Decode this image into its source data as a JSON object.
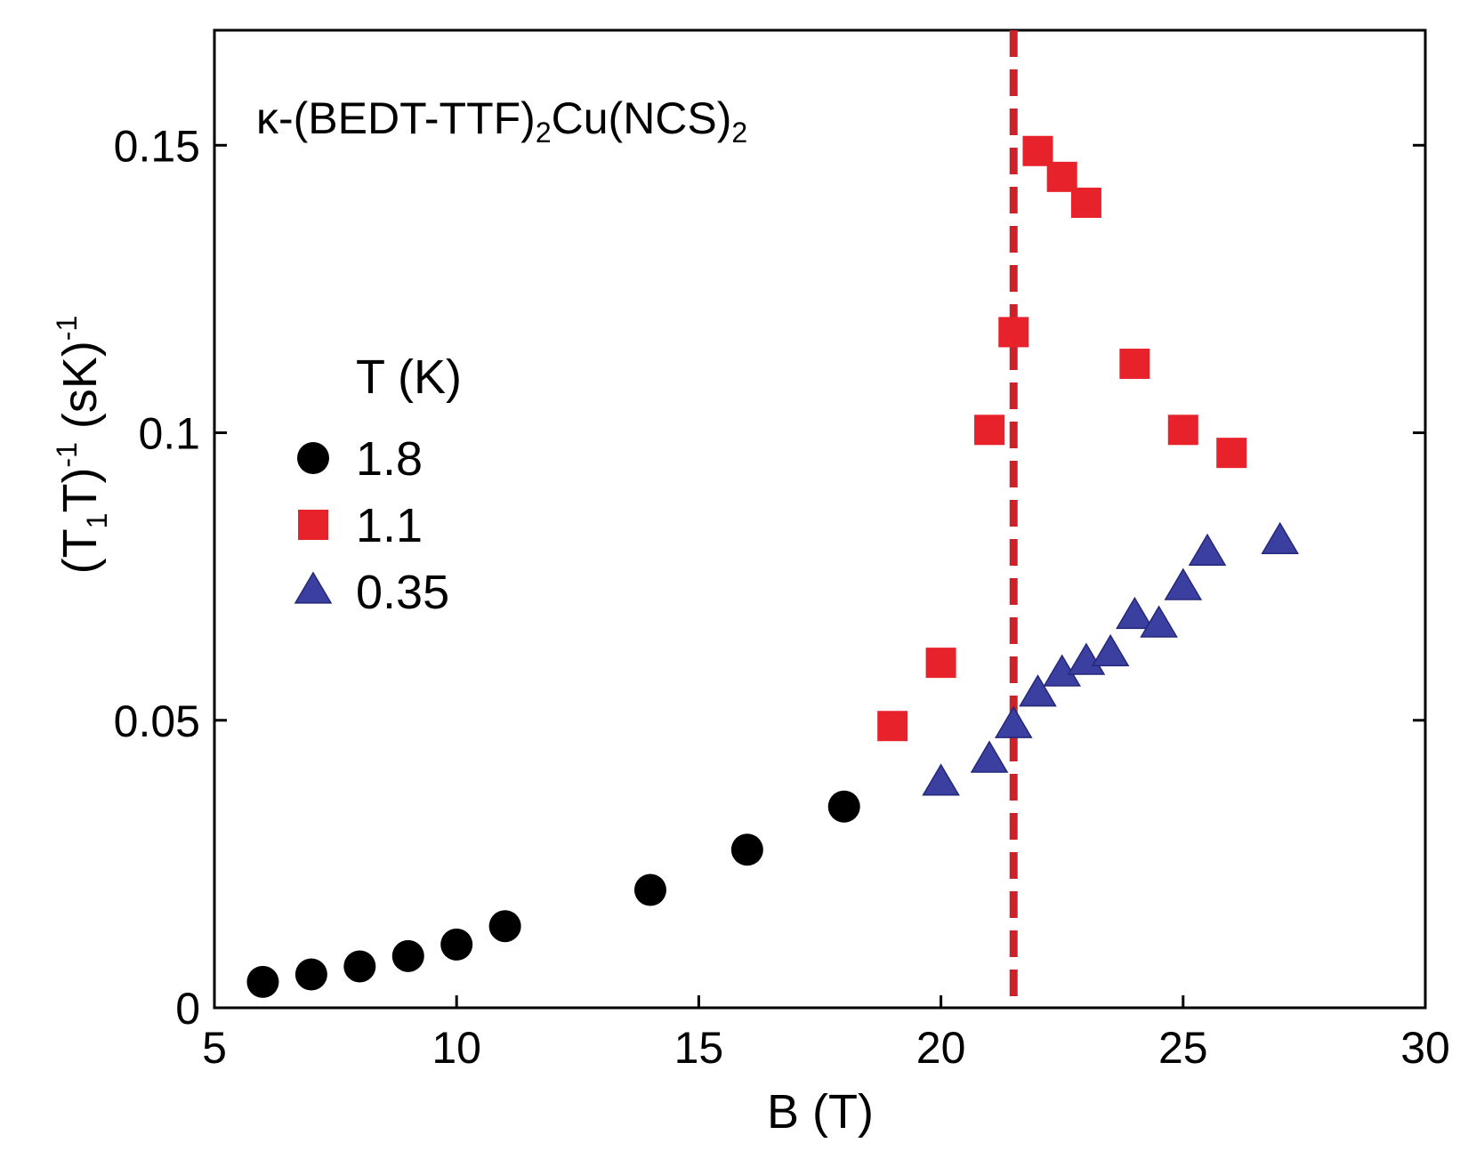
{
  "chart_data": {
    "type": "scatter",
    "annotation": {
      "parts": [
        {
          "text": "κ-(BEDT-TTF)",
          "sub": false
        },
        {
          "text": "2",
          "sub": true
        },
        {
          "text": "Cu(NCS)",
          "sub": false
        },
        {
          "text": "2",
          "sub": true
        }
      ]
    },
    "xlabel": "B (T)",
    "ylabel": {
      "parts": [
        {
          "text": "(T",
          "script": "none"
        },
        {
          "text": "1",
          "script": "sub"
        },
        {
          "text": "T)",
          "script": "none"
        },
        {
          "text": "-1",
          "script": "sup"
        },
        {
          "text": " (sK)",
          "script": "none"
        },
        {
          "text": "-1",
          "script": "sup"
        }
      ]
    },
    "xlim": [
      5,
      30
    ],
    "ylim": [
      0,
      0.17
    ],
    "xticks": [
      5,
      10,
      15,
      20,
      25,
      30
    ],
    "xtick_labels": [
      "5",
      "10",
      "15",
      "20",
      "25",
      "30"
    ],
    "yticks": [
      0,
      0.05,
      0.1,
      0.15
    ],
    "ytick_labels": [
      "0",
      "0.05",
      "0.1",
      "0.15"
    ],
    "grid": false,
    "legend": {
      "title": "T (K)",
      "placement": "left-middle"
    },
    "reference_line": {
      "orientation": "vertical",
      "x": 21.5,
      "style": "dashed",
      "color": "#cc2229"
    },
    "series": [
      {
        "name": "1.8",
        "marker": "circle",
        "color": "#000000",
        "points": [
          [
            6,
            0.0045
          ],
          [
            7,
            0.0058
          ],
          [
            8,
            0.0072
          ],
          [
            9,
            0.009
          ],
          [
            10,
            0.011
          ],
          [
            11,
            0.0142
          ],
          [
            14,
            0.0205
          ],
          [
            16,
            0.0275
          ],
          [
            18,
            0.035
          ]
        ]
      },
      {
        "name": "1.1",
        "marker": "square",
        "color": "#e8222b",
        "points": [
          [
            19,
            0.049
          ],
          [
            20,
            0.06
          ],
          [
            21,
            0.1005
          ],
          [
            21.5,
            0.1175
          ],
          [
            22,
            0.149
          ],
          [
            22.5,
            0.1445
          ],
          [
            23,
            0.14
          ],
          [
            24,
            0.112
          ],
          [
            25,
            0.1005
          ],
          [
            26,
            0.0965
          ]
        ]
      },
      {
        "name": "0.35",
        "marker": "triangle",
        "color": "#3a3fa0",
        "points": [
          [
            20,
            0.039
          ],
          [
            21,
            0.043
          ],
          [
            21.5,
            0.049
          ],
          [
            22,
            0.0545
          ],
          [
            22.5,
            0.058
          ],
          [
            23,
            0.06
          ],
          [
            23.5,
            0.0615
          ],
          [
            24,
            0.068
          ],
          [
            24.5,
            0.0665
          ],
          [
            25,
            0.073
          ],
          [
            25.5,
            0.079
          ],
          [
            27,
            0.081
          ]
        ]
      }
    ]
  }
}
